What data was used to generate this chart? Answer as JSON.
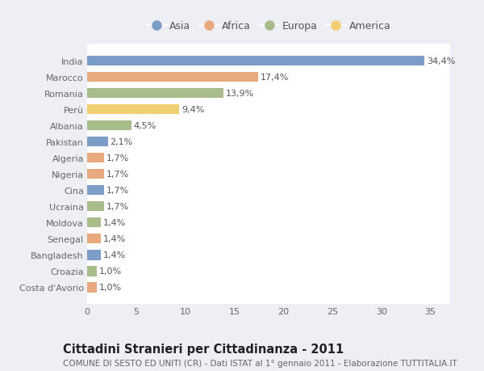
{
  "countries": [
    "India",
    "Marocco",
    "Romania",
    "Perù",
    "Albania",
    "Pakistan",
    "Algeria",
    "Nigeria",
    "Cina",
    "Ucraina",
    "Moldova",
    "Senegal",
    "Bangladesh",
    "Croazia",
    "Costa d'Avorio"
  ],
  "values": [
    34.4,
    17.4,
    13.9,
    9.4,
    4.5,
    2.1,
    1.7,
    1.7,
    1.7,
    1.7,
    1.4,
    1.4,
    1.4,
    1.0,
    1.0
  ],
  "labels": [
    "34,4%",
    "17,4%",
    "13,9%",
    "9,4%",
    "4,5%",
    "2,1%",
    "1,7%",
    "1,7%",
    "1,7%",
    "1,7%",
    "1,4%",
    "1,4%",
    "1,4%",
    "1,0%",
    "1,0%"
  ],
  "continents": [
    "Asia",
    "Africa",
    "Europa",
    "America",
    "Europa",
    "Asia",
    "Africa",
    "Africa",
    "Asia",
    "Europa",
    "Europa",
    "Africa",
    "Asia",
    "Europa",
    "Africa"
  ],
  "continent_colors": {
    "Asia": "#7b9dc7",
    "Africa": "#e8a97e",
    "Europa": "#a8bc8a",
    "America": "#f0d070"
  },
  "legend_order": [
    "Asia",
    "Africa",
    "Europa",
    "America"
  ],
  "title": "Cittadini Stranieri per Cittadinanza - 2011",
  "subtitle": "COMUNE DI SESTO ED UNITI (CR) - Dati ISTAT al 1° gennaio 2011 - Elaborazione TUTTITALIA.IT",
  "xlim": [
    0,
    37
  ],
  "xticks": [
    0,
    5,
    10,
    15,
    20,
    25,
    30,
    35
  ],
  "background_color": "#eeeef5",
  "plot_bg_color": "#ffffff",
  "grid_color": "#ffffff",
  "label_fontsize": 8,
  "ytick_fontsize": 8,
  "xtick_fontsize": 8,
  "title_fontsize": 10.5,
  "subtitle_fontsize": 7.5,
  "bar_height": 0.62
}
